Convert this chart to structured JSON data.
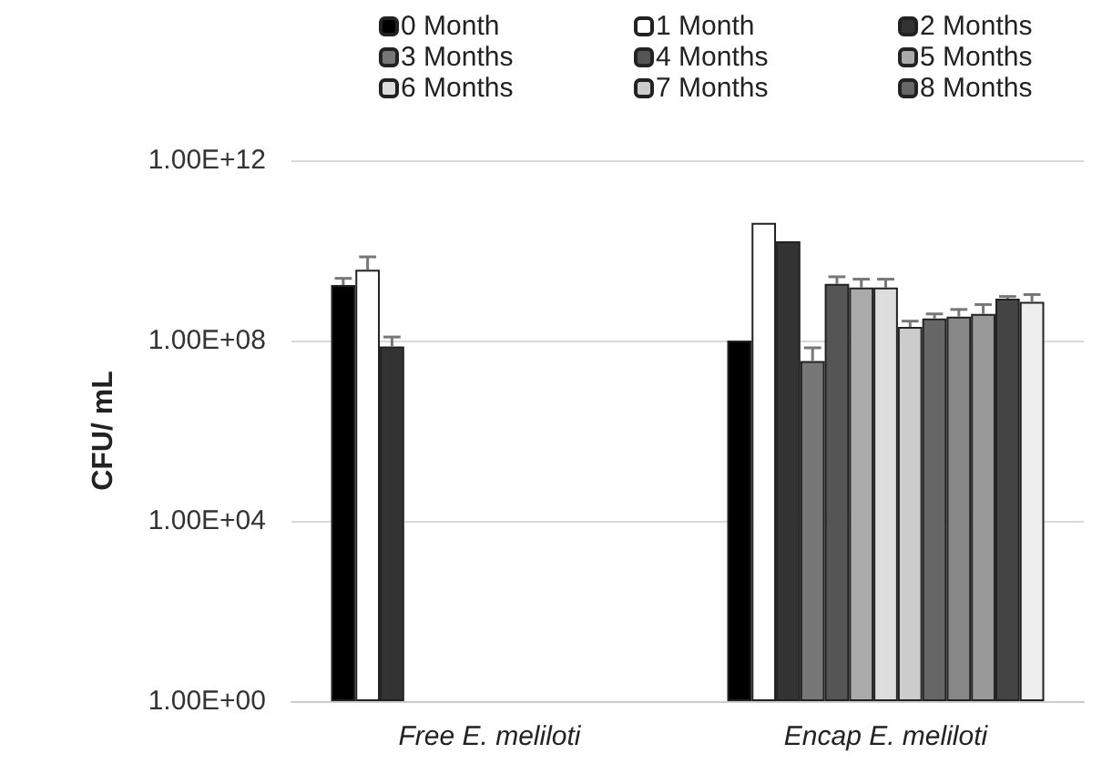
{
  "chart_data": {
    "type": "bar",
    "ylabel": "CFU/ mL",
    "categories": [
      "Free E. meliloti",
      "Encap E. meliloti"
    ],
    "series": [
      {
        "name": "0 Month",
        "color": "#000000",
        "values": [
          1700000000.0,
          100000000.0
        ],
        "errors": [
          700000000.0,
          null
        ]
      },
      {
        "name": "1 Month",
        "color": "#ffffff",
        "values": [
          3700000000.0,
          41000000000.0
        ],
        "errors": [
          3500000000.0,
          null
        ]
      },
      {
        "name": "2 Months",
        "color": "#333333",
        "values": [
          74000000.0,
          16000000000.0
        ],
        "errors": [
          46000000.0,
          null
        ]
      },
      {
        "name": "3 Months",
        "color": "#777777",
        "values": [
          null,
          35000000.0
        ],
        "errors": [
          null,
          34000000.0
        ]
      },
      {
        "name": "4 Months",
        "color": "#555555",
        "values": [
          null,
          1800000000.0
        ],
        "errors": [
          null,
          800000000.0
        ]
      },
      {
        "name": "5 Months",
        "color": "#aaaaaa",
        "values": [
          null,
          1500000000.0
        ],
        "errors": [
          null,
          800000000.0
        ]
      },
      {
        "name": "6 Months",
        "color": "#dddddd",
        "values": [
          null,
          1500000000.0
        ],
        "errors": [
          null,
          800000000.0
        ]
      },
      {
        "name": "7 Months",
        "color": "#cccccc",
        "values": [
          null,
          200000000.0
        ],
        "errors": [
          null,
          70000000.0
        ]
      },
      {
        "name": "8 Months",
        "color": "#666666",
        "values": [
          null,
          310000000.0
        ],
        "errors": [
          null,
          80000000.0
        ]
      },
      {
        "color": "#888888",
        "values": [
          null,
          340000000.0
        ],
        "errors": [
          null,
          150000000.0
        ]
      },
      {
        "color": "#999999",
        "values": [
          null,
          390000000.0
        ],
        "errors": [
          null,
          240000000.0
        ]
      },
      {
        "color": "#444444",
        "values": [
          null,
          850000000.0
        ],
        "errors": [
          null,
          100000000.0
        ]
      },
      {
        "color": "#eeeeee",
        "values": [
          null,
          720000000.0
        ],
        "errors": [
          null,
          330000000.0
        ]
      }
    ],
    "log": "y",
    "ylim": [
      1,
      1000000000000.0
    ],
    "yticks": [
      {
        "value": 1,
        "label": "1.00E+00"
      },
      {
        "value": 10000,
        "label": "1.00E+04"
      },
      {
        "value": 100000000,
        "label": "1.00E+08"
      },
      {
        "value": 1000000000000,
        "label": "1.00E+12"
      }
    ],
    "grid": "y",
    "legend": "top"
  }
}
